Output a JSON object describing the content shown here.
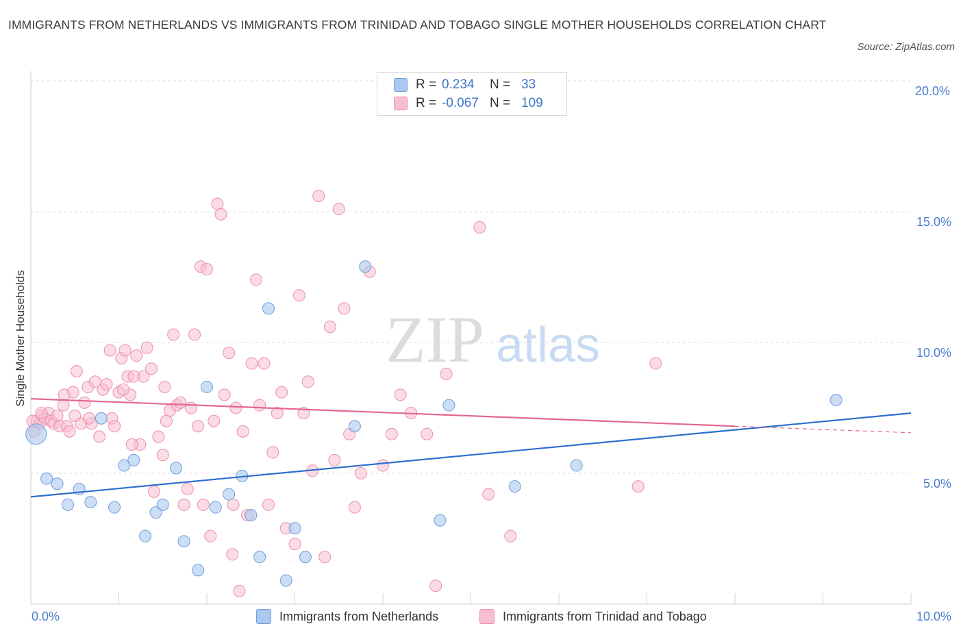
{
  "title": "IMMIGRANTS FROM NETHERLANDS VS IMMIGRANTS FROM TRINIDAD AND TOBAGO SINGLE MOTHER HOUSEHOLDS CORRELATION CHART",
  "source": "Source: ZipAtlas.com",
  "watermark": {
    "zip": "ZIP",
    "atlas": "atlas"
  },
  "colors": {
    "blue_fill": "#aac8f0",
    "blue_stroke": "#6f9fd8",
    "blue_line": "#2f6fd0",
    "pink_fill": "#f7bfd0",
    "pink_stroke": "#ec8fab",
    "pink_line": "#e26790",
    "tick_text": "#4a7ccf",
    "grid": "#dddddd"
  },
  "legend": [
    {
      "r_label": "R =",
      "r_value": "0.234",
      "n_label": "N =",
      "n_value": "33"
    },
    {
      "r_label": "R =",
      "r_value": "-0.067",
      "n_label": "N =",
      "n_value": "109"
    }
  ],
  "bottom_legend": [
    "Immigrants from Netherlands",
    "Immigrants from Trinidad and Tobago"
  ],
  "chart_data": {
    "type": "scatter",
    "title": "IMMIGRANTS FROM NETHERLANDS VS IMMIGRANTS FROM TRINIDAD AND TOBAGO SINGLE MOTHER HOUSEHOLDS CORRELATION CHART",
    "xlabel": "",
    "ylabel": "Single Mother Households",
    "xlim": [
      0,
      10
    ],
    "ylim": [
      0,
      20
    ],
    "x_tick_labels": [
      "0.0%",
      "10.0%"
    ],
    "y_tick_labels": [
      "5.0%",
      "10.0%",
      "15.0%",
      "20.0%"
    ],
    "y_tick_values": [
      5,
      10,
      15,
      20
    ],
    "grid": true,
    "series": [
      {
        "name": "Immigrants from Netherlands",
        "R": 0.234,
        "N": 33,
        "trend": {
          "x0": 0,
          "y0": 4.1,
          "x1": 10,
          "y1": 7.3
        },
        "points": [
          [
            0.06,
            6.5
          ],
          [
            0.18,
            4.8
          ],
          [
            0.3,
            4.6
          ],
          [
            0.42,
            3.8
          ],
          [
            0.55,
            4.4
          ],
          [
            0.68,
            3.9
          ],
          [
            0.8,
            7.1
          ],
          [
            0.95,
            3.7
          ],
          [
            1.06,
            5.3
          ],
          [
            1.17,
            5.5
          ],
          [
            1.3,
            2.6
          ],
          [
            1.42,
            3.5
          ],
          [
            1.5,
            3.8
          ],
          [
            1.65,
            5.2
          ],
          [
            1.74,
            2.4
          ],
          [
            1.9,
            1.3
          ],
          [
            2.0,
            8.3
          ],
          [
            2.1,
            3.7
          ],
          [
            2.25,
            4.2
          ],
          [
            2.4,
            4.9
          ],
          [
            2.5,
            3.4
          ],
          [
            2.6,
            1.8
          ],
          [
            2.7,
            11.3
          ],
          [
            2.9,
            0.9
          ],
          [
            3.0,
            2.9
          ],
          [
            3.12,
            1.8
          ],
          [
            3.68,
            6.8
          ],
          [
            3.8,
            12.9
          ],
          [
            4.65,
            3.2
          ],
          [
            4.75,
            7.6
          ],
          [
            5.5,
            4.5
          ],
          [
            6.2,
            5.3
          ],
          [
            9.15,
            7.8
          ]
        ]
      },
      {
        "name": "Immigrants from Trinidad and Tobago",
        "R": -0.067,
        "N": 109,
        "trend": {
          "x0": 0,
          "y0": 7.85,
          "x1": 8.0,
          "y1": 6.8,
          "dash_x1": 10,
          "dash_y1": 6.55
        },
        "points": [
          [
            0.04,
            6.6
          ],
          [
            0.07,
            7.0
          ],
          [
            0.1,
            6.9
          ],
          [
            0.13,
            7.2
          ],
          [
            0.16,
            7.1
          ],
          [
            0.2,
            7.3
          ],
          [
            0.23,
            7.0
          ],
          [
            0.26,
            6.9
          ],
          [
            0.3,
            7.2
          ],
          [
            0.33,
            6.8
          ],
          [
            0.37,
            7.6
          ],
          [
            0.41,
            6.8
          ],
          [
            0.44,
            6.6
          ],
          [
            0.48,
            8.1
          ],
          [
            0.52,
            8.9
          ],
          [
            0.57,
            6.9
          ],
          [
            0.61,
            7.7
          ],
          [
            0.65,
            8.3
          ],
          [
            0.69,
            6.9
          ],
          [
            0.73,
            8.5
          ],
          [
            0.78,
            6.4
          ],
          [
            0.82,
            8.2
          ],
          [
            0.86,
            8.4
          ],
          [
            0.9,
            9.7
          ],
          [
            0.92,
            7.1
          ],
          [
            0.95,
            6.8
          ],
          [
            1.0,
            8.1
          ],
          [
            1.03,
            9.4
          ],
          [
            1.07,
            9.7
          ],
          [
            1.1,
            8.7
          ],
          [
            1.13,
            8.0
          ],
          [
            1.17,
            8.7
          ],
          [
            1.2,
            9.5
          ],
          [
            1.24,
            6.1
          ],
          [
            1.28,
            8.7
          ],
          [
            1.32,
            9.8
          ],
          [
            1.37,
            9.0
          ],
          [
            1.4,
            4.3
          ],
          [
            1.45,
            6.4
          ],
          [
            1.5,
            5.7
          ],
          [
            1.54,
            7.0
          ],
          [
            1.58,
            7.4
          ],
          [
            1.62,
            10.3
          ],
          [
            1.66,
            7.6
          ],
          [
            1.7,
            7.7
          ],
          [
            1.74,
            3.8
          ],
          [
            1.78,
            4.4
          ],
          [
            1.82,
            7.5
          ],
          [
            1.86,
            10.3
          ],
          [
            1.9,
            6.8
          ],
          [
            1.93,
            12.9
          ],
          [
            1.96,
            3.8
          ],
          [
            2.0,
            12.8
          ],
          [
            2.04,
            2.6
          ],
          [
            2.08,
            7.0
          ],
          [
            2.12,
            15.3
          ],
          [
            2.16,
            14.9
          ],
          [
            2.2,
            8.0
          ],
          [
            2.25,
            9.6
          ],
          [
            2.29,
            1.9
          ],
          [
            2.33,
            7.5
          ],
          [
            2.37,
            0.5
          ],
          [
            2.41,
            6.6
          ],
          [
            2.46,
            3.4
          ],
          [
            2.51,
            9.2
          ],
          [
            2.56,
            12.4
          ],
          [
            2.6,
            7.6
          ],
          [
            2.65,
            9.2
          ],
          [
            2.7,
            3.8
          ],
          [
            2.75,
            5.8
          ],
          [
            2.8,
            7.3
          ],
          [
            2.85,
            8.1
          ],
          [
            2.9,
            2.9
          ],
          [
            3.0,
            2.3
          ],
          [
            3.05,
            11.8
          ],
          [
            3.1,
            7.3
          ],
          [
            3.15,
            8.5
          ],
          [
            3.2,
            5.1
          ],
          [
            3.27,
            15.6
          ],
          [
            3.34,
            1.8
          ],
          [
            3.4,
            10.6
          ],
          [
            3.45,
            5.5
          ],
          [
            3.5,
            15.1
          ],
          [
            3.56,
            11.3
          ],
          [
            3.62,
            6.5
          ],
          [
            3.68,
            3.7
          ],
          [
            3.75,
            5.0
          ],
          [
            3.85,
            12.7
          ],
          [
            4.0,
            5.3
          ],
          [
            4.1,
            6.5
          ],
          [
            4.2,
            8.0
          ],
          [
            4.32,
            7.3
          ],
          [
            4.5,
            6.5
          ],
          [
            4.6,
            0.7
          ],
          [
            4.72,
            8.8
          ],
          [
            5.1,
            14.4
          ],
          [
            5.2,
            4.2
          ],
          [
            5.45,
            2.6
          ],
          [
            6.9,
            4.5
          ],
          [
            7.1,
            9.2
          ],
          [
            0.02,
            7.0
          ],
          [
            0.12,
            7.3
          ],
          [
            0.66,
            7.1
          ],
          [
            1.05,
            8.2
          ],
          [
            1.52,
            8.3
          ],
          [
            1.15,
            6.1
          ],
          [
            2.3,
            3.8
          ],
          [
            0.38,
            8.0
          ],
          [
            0.5,
            7.2
          ]
        ]
      }
    ]
  }
}
